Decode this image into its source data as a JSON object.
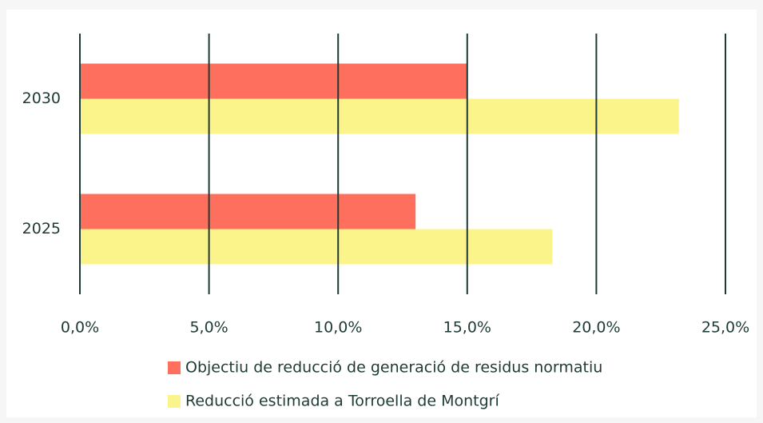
{
  "chart_data": {
    "type": "hbar",
    "categories": [
      "2030",
      "2025"
    ],
    "series": [
      {
        "name": "Objectiu de reducció de generació de residus normatiu",
        "color": "#ff6f5e",
        "values": [
          15,
          13
        ]
      },
      {
        "name": "Reducció estimada a Torroella de Montgrí",
        "color": "#fbf48a",
        "values": [
          23.2,
          18.3
        ]
      }
    ],
    "xlim": [
      0,
      25
    ],
    "xticks": [
      {
        "value": 0,
        "label": "0,0%"
      },
      {
        "value": 5,
        "label": "5,0%"
      },
      {
        "value": 10,
        "label": "10,0%"
      },
      {
        "value": 15,
        "label": "15,0%"
      },
      {
        "value": 20,
        "label": "20,0%"
      },
      {
        "value": 25,
        "label": "25,0%"
      }
    ],
    "grid": true,
    "legend": "bottom"
  }
}
